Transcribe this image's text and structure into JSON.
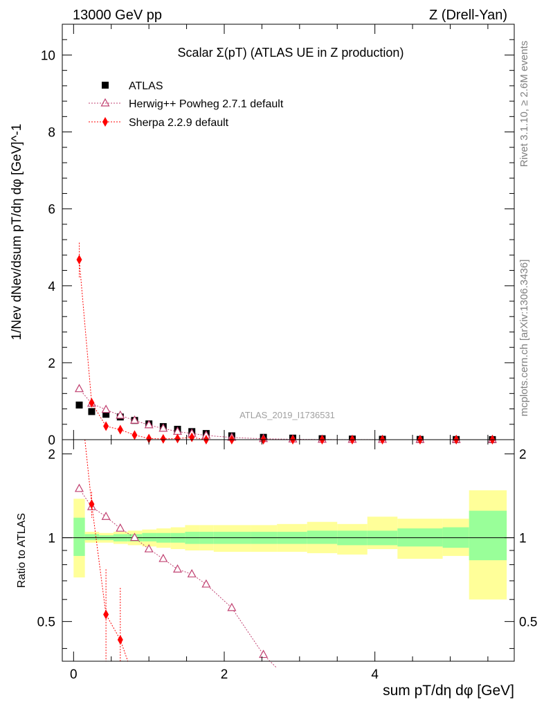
{
  "header": {
    "left": "13000 GeV pp",
    "right": "Z (Drell-Yan)"
  },
  "side": {
    "rivet": "Rivet 3.1.10, ≥ 2.6M events",
    "mcplots": "mcplots.cern.ch [arXiv:1306.3436]"
  },
  "chart_data": [
    {
      "type": "scatter",
      "title": "Scalar Σ(pT) (ATLAS UE in Z production)",
      "watermark": "ATLAS_2019_I1736531",
      "xlabel": "sum pT/dη dφ [GeV]",
      "ylabel": "1/Nev dNev/dsum pT/dη dφ [GeV]^-1",
      "xlim": [
        -0.15,
        5.85
      ],
      "ylim": [
        0,
        10.8
      ],
      "xticks": [
        0,
        2,
        4
      ],
      "yticks": [
        0,
        2,
        4,
        6,
        8,
        10
      ],
      "legend_position": "top-left",
      "series": [
        {
          "name": "ATLAS",
          "color": "#000000",
          "marker": "square",
          "x": [
            0.075,
            0.24,
            0.43,
            0.62,
            0.81,
            1.0,
            1.19,
            1.38,
            1.57,
            1.76,
            2.1,
            2.52,
            2.91,
            3.3,
            3.7,
            4.1,
            4.6,
            5.08,
            5.56
          ],
          "y": [
            0.9,
            0.73,
            0.66,
            0.59,
            0.5,
            0.41,
            0.34,
            0.27,
            0.21,
            0.16,
            0.1,
            0.06,
            0.04,
            0.025,
            0.016,
            0.01,
            0.006,
            0.004,
            0.002
          ]
        },
        {
          "name": "Herwig++ Powheg 2.7.1 default",
          "color": "#c04070",
          "marker": "triangle",
          "x": [
            0.075,
            0.24,
            0.43,
            0.62,
            0.81,
            1.0,
            1.19,
            1.38,
            1.57,
            1.76,
            2.1,
            2.52,
            2.91,
            3.3,
            3.7,
            4.1,
            4.6,
            5.08,
            5.56
          ],
          "y": [
            1.32,
            0.94,
            0.78,
            0.63,
            0.5,
            0.38,
            0.29,
            0.21,
            0.16,
            0.11,
            0.056,
            0.023,
            0.01,
            0.004,
            0.002,
            0.001,
            0.0005,
            0.0002,
            0.0001
          ]
        },
        {
          "name": "Sherpa 2.2.9 default",
          "color": "#ff0000",
          "marker": "diamond",
          "x": [
            0.075,
            0.24,
            0.43,
            0.62,
            0.81,
            1.0,
            1.19,
            1.38,
            1.57,
            1.76,
            2.1,
            2.52,
            2.91,
            3.3,
            3.7,
            4.1,
            4.6,
            5.08,
            5.56
          ],
          "y": [
            4.68,
            0.96,
            0.35,
            0.26,
            0.12,
            0.03,
            0.02,
            0.03,
            0.06,
            0.0,
            0.0,
            0.0,
            0.0,
            0.0,
            0.0,
            0.0,
            0.0,
            0.0,
            0.0
          ]
        }
      ]
    },
    {
      "type": "line",
      "title": "",
      "xlabel": "sum pT/dη dφ [GeV]",
      "ylabel": "Ratio to ATLAS",
      "xlim": [
        -0.15,
        5.85
      ],
      "ylim": [
        0.36,
        2.25
      ],
      "xticks": [
        0,
        2,
        4
      ],
      "yticks": [
        0.5,
        1,
        2
      ],
      "band_edges": [
        0.0,
        0.15,
        0.34,
        0.53,
        0.72,
        0.91,
        1.1,
        1.29,
        1.48,
        1.67,
        1.86,
        2.35,
        2.7,
        3.1,
        3.5,
        3.9,
        4.3,
        4.9,
        5.25,
        5.75
      ],
      "band_green_lo": [
        0.86,
        0.98,
        0.98,
        0.97,
        0.97,
        0.97,
        0.96,
        0.96,
        0.95,
        0.95,
        0.95,
        0.95,
        0.95,
        0.95,
        0.94,
        0.94,
        0.93,
        0.92,
        0.83
      ],
      "band_green_hi": [
        1.18,
        1.03,
        1.02,
        1.03,
        1.03,
        1.04,
        1.04,
        1.04,
        1.05,
        1.05,
        1.05,
        1.05,
        1.05,
        1.06,
        1.06,
        1.06,
        1.08,
        1.09,
        1.25
      ],
      "band_yellow_lo": [
        0.72,
        0.96,
        0.96,
        0.95,
        0.94,
        0.93,
        0.92,
        0.91,
        0.9,
        0.9,
        0.89,
        0.89,
        0.89,
        0.88,
        0.87,
        0.91,
        0.84,
        0.86,
        0.6
      ],
      "band_yellow_hi": [
        1.38,
        1.05,
        1.04,
        1.05,
        1.06,
        1.07,
        1.08,
        1.09,
        1.11,
        1.11,
        1.11,
        1.11,
        1.12,
        1.14,
        1.12,
        1.19,
        1.17,
        1.17,
        1.48
      ],
      "series": [
        {
          "name": "Herwig++ Powheg 2.7.1 default",
          "color": "#c04070",
          "marker": "triangle",
          "x": [
            0.075,
            0.24,
            0.43,
            0.62,
            0.81,
            1.0,
            1.19,
            1.38,
            1.57,
            1.76,
            2.1,
            2.52
          ],
          "y": [
            1.5,
            1.29,
            1.19,
            1.08,
            1.0,
            0.91,
            0.84,
            0.77,
            0.74,
            0.68,
            0.56,
            0.38
          ],
          "tail": [
            2.7,
            0.34
          ]
        },
        {
          "name": "Sherpa 2.2.9 default",
          "color": "#ff0000",
          "marker": "diamond",
          "x": [
            0.24,
            0.43,
            0.62
          ],
          "y": [
            1.32,
            0.53,
            0.43
          ],
          "lead": [
            0.15,
            2.25
          ],
          "tail": [
            0.72,
            0.36
          ]
        }
      ]
    }
  ]
}
